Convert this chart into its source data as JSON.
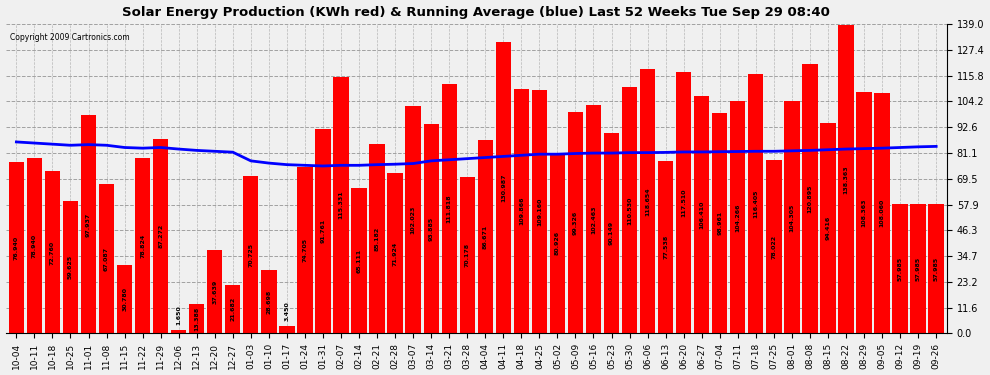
{
  "title": "Solar Energy Production (KWh red) & Running Average (blue) Last 52 Weeks Tue Sep 29 08:40",
  "copyright": "Copyright 2009 Cartronics.com",
  "bar_color": "#ff0000",
  "line_color": "#0000ff",
  "background_color": "#f0f0f0",
  "ylim": [
    0,
    139.0
  ],
  "yticks": [
    0.0,
    11.6,
    23.2,
    34.7,
    46.3,
    57.9,
    69.5,
    81.1,
    92.6,
    104.2,
    115.8,
    127.4,
    139.0
  ],
  "categories": [
    "10-04",
    "10-11",
    "10-18",
    "10-25",
    "11-01",
    "11-08",
    "11-15",
    "11-22",
    "11-29",
    "12-06",
    "12-13",
    "12-20",
    "12-27",
    "01-03",
    "01-10",
    "01-17",
    "01-24",
    "01-31",
    "02-07",
    "02-14",
    "02-21",
    "02-28",
    "03-07",
    "03-14",
    "03-21",
    "03-28",
    "04-04",
    "04-11",
    "04-18",
    "04-25",
    "05-02",
    "05-09",
    "05-16",
    "05-23",
    "05-30",
    "06-06",
    "06-13",
    "06-20",
    "06-27",
    "07-04",
    "07-11",
    "07-18",
    "07-25",
    "08-01",
    "08-08",
    "08-15",
    "08-22",
    "08-29",
    "09-05",
    "09-12",
    "09-19",
    "09-26"
  ],
  "values": [
    76.94,
    78.94,
    72.76,
    59.625,
    97.937,
    67.087,
    30.78,
    78.824,
    87.272,
    1.65,
    13.388,
    37.639,
    21.682,
    70.725,
    28.698,
    3.45,
    74.705,
    91.761,
    115.331,
    65.111,
    85.182,
    71.924,
    102.023,
    93.885,
    111.818,
    70.178,
    86.671,
    130.987,
    109.866,
    109.16,
    80.926,
    99.326,
    102.463,
    90.149,
    110.53,
    118.654,
    77.538,
    117.51,
    106.41,
    98.961,
    104.266,
    116.405,
    78.022,
    104.305,
    120.895,
    94.416,
    138.363,
    108.363,
    108.06,
    57.985,
    57.985,
    57.985
  ],
  "running_avg": [
    86.0,
    85.5,
    85.0,
    84.5,
    84.8,
    84.5,
    83.5,
    83.2,
    83.5,
    82.8,
    82.2,
    81.8,
    81.4,
    77.5,
    76.5,
    75.8,
    75.5,
    75.2,
    75.5,
    75.5,
    75.8,
    76.0,
    76.3,
    77.5,
    78.0,
    78.5,
    79.0,
    79.5,
    80.0,
    80.5,
    80.5,
    80.8,
    81.0,
    81.0,
    81.2,
    81.2,
    81.3,
    81.5,
    81.5,
    81.6,
    81.7,
    81.8,
    81.8,
    82.0,
    82.2,
    82.5,
    82.8,
    83.0,
    83.2,
    83.5,
    83.8,
    84.0
  ]
}
